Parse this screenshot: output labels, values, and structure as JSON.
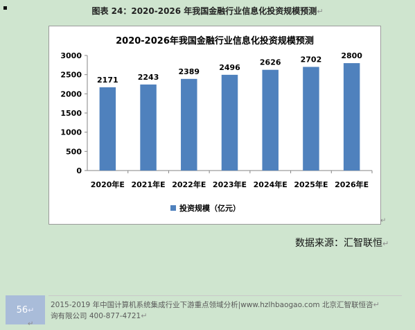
{
  "document": {
    "caption": "图表 24：2020-2026 年我国金融行业信息化投资规模预测",
    "source": "数据来源：汇智联恒",
    "page_number": "56",
    "footer_line1": "2015-2019 年中国计算机系统集成行业下游重点领域分析|www.hzlhbaogao.com 北京汇智联恒咨",
    "footer_line2": "询有限公司  400-877-4721",
    "paragraph_mark": "↵"
  },
  "chart_data": {
    "type": "bar",
    "title": "2020-2026年我国金融行业信息化投资规模预测",
    "categories": [
      "2020年E",
      "2021年E",
      "2022年E",
      "2023年E",
      "2024年E",
      "2025年E",
      "2026年E"
    ],
    "series": [
      {
        "name": "投资规模（亿元）",
        "values": [
          2171,
          2243,
          2389,
          2496,
          2626,
          2702,
          2800
        ]
      }
    ],
    "ylim": [
      0,
      3000
    ],
    "yticks": [
      0,
      500,
      1000,
      1500,
      2000,
      2500,
      3000
    ],
    "legend_position": "bottom",
    "grid": false,
    "colors": {
      "bar": "#4f81bd"
    }
  }
}
